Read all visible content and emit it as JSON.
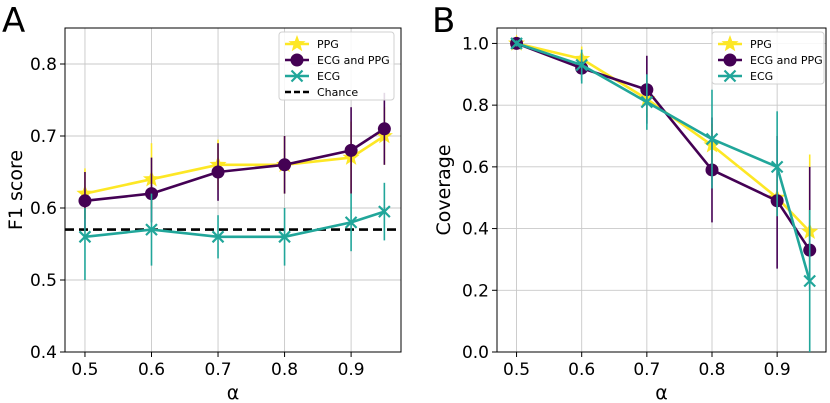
{
  "colors": {
    "PPG": "#fde725",
    "ECG and PPG": "#440154",
    "ECG": "#21a69a",
    "Chance": "#000000"
  },
  "chart_data": [
    {
      "panel": "A",
      "type": "line",
      "xlabel": "α",
      "ylabel": "F1 score",
      "xlim": [
        0.47,
        0.975
      ],
      "ylim": [
        0.4,
        0.85
      ],
      "xticks": [
        "0.5",
        "0.6",
        "0.7",
        "0.8",
        "0.9"
      ],
      "yticks": [
        "0.4",
        "0.5",
        "0.6",
        "0.7",
        "0.8"
      ],
      "grid": true,
      "legend_position": "top-right",
      "x": [
        0.5,
        0.6,
        0.7,
        0.8,
        0.9,
        0.95
      ],
      "series": [
        {
          "name": "PPG",
          "marker": "star",
          "values": [
            0.62,
            0.64,
            0.66,
            0.66,
            0.67,
            0.7
          ],
          "err_low": [
            0.585,
            0.6,
            0.625,
            0.62,
            0.62,
            0.66
          ],
          "err_high": [
            0.655,
            0.69,
            0.695,
            0.7,
            0.72,
            0.74
          ]
        },
        {
          "name": "ECG and PPG",
          "marker": "circle",
          "values": [
            0.61,
            0.62,
            0.65,
            0.66,
            0.68,
            0.71
          ],
          "err_low": [
            0.57,
            0.58,
            0.61,
            0.62,
            0.62,
            0.66
          ],
          "err_high": [
            0.65,
            0.67,
            0.69,
            0.7,
            0.74,
            0.76
          ]
        },
        {
          "name": "ECG",
          "marker": "x",
          "values": [
            0.56,
            0.57,
            0.56,
            0.56,
            0.58,
            0.595
          ],
          "err_low": [
            0.5,
            0.52,
            0.53,
            0.52,
            0.54,
            0.555
          ],
          "err_high": [
            0.6,
            0.62,
            0.59,
            0.6,
            0.62,
            0.635
          ]
        }
      ],
      "reference_line": {
        "name": "Chance",
        "value": 0.57,
        "style": "dashed"
      }
    },
    {
      "panel": "B",
      "type": "line",
      "xlabel": "α",
      "ylabel": "Coverage",
      "xlim": [
        0.47,
        0.975
      ],
      "ylim": [
        0.0,
        1.05
      ],
      "xticks": [
        "0.5",
        "0.6",
        "0.7",
        "0.8",
        "0.9"
      ],
      "yticks": [
        "0.0",
        "0.2",
        "0.4",
        "0.6",
        "0.8",
        "1.0"
      ],
      "grid": true,
      "legend_position": "top-right",
      "x": [
        0.5,
        0.6,
        0.7,
        0.8,
        0.9,
        0.95
      ],
      "series": [
        {
          "name": "PPG",
          "marker": "star",
          "values": [
            1.0,
            0.95,
            0.82,
            0.67,
            0.5,
            0.39
          ],
          "err_low": [
            0.99,
            0.91,
            0.76,
            0.6,
            0.44,
            0.3
          ],
          "err_high": [
            1.01,
            0.99,
            0.88,
            0.74,
            0.56,
            0.64
          ]
        },
        {
          "name": "ECG and PPG",
          "marker": "circle",
          "values": [
            1.0,
            0.92,
            0.85,
            0.59,
            0.49,
            0.33
          ],
          "err_low": [
            0.99,
            0.88,
            0.74,
            0.42,
            0.27,
            0.2
          ],
          "err_high": [
            1.01,
            0.96,
            0.96,
            0.76,
            0.7,
            0.6
          ]
        },
        {
          "name": "ECG",
          "marker": "x",
          "values": [
            1.0,
            0.93,
            0.81,
            0.69,
            0.6,
            0.23
          ],
          "err_low": [
            0.99,
            0.87,
            0.72,
            0.53,
            0.44,
            0.0
          ],
          "err_high": [
            1.01,
            0.98,
            0.9,
            0.85,
            0.78,
            0.46
          ]
        }
      ]
    }
  ]
}
